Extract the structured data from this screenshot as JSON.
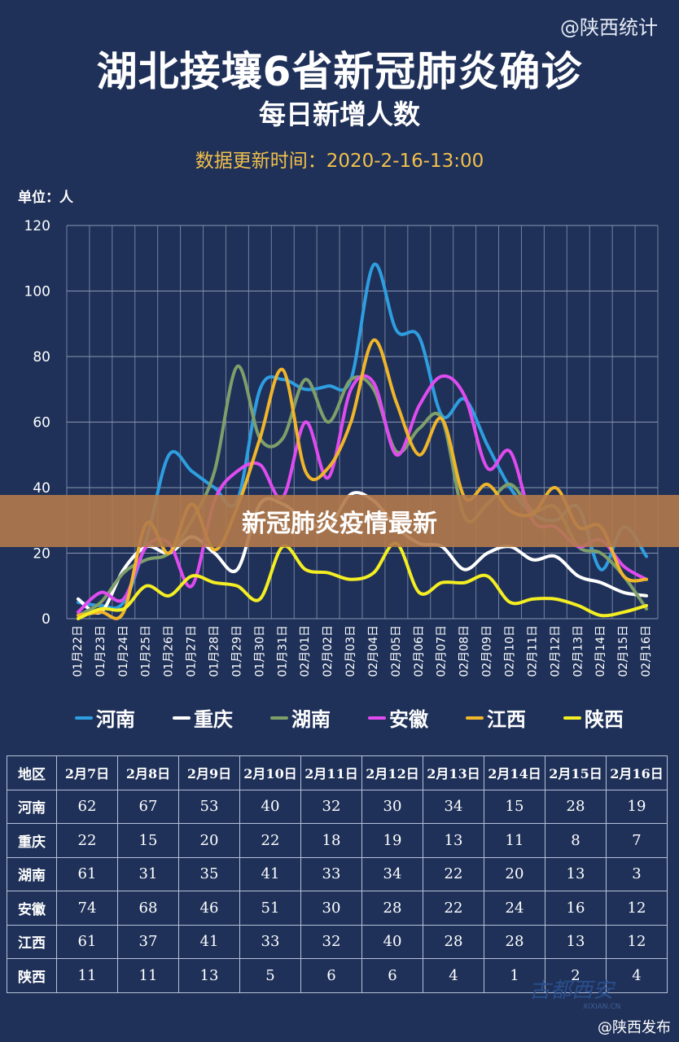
{
  "watermark_top": "@陕西统计",
  "title": "湖北接壤6省新冠肺炎确诊",
  "subtitle": "每日新增人数",
  "update_time": "数据更新时间：2020-2-16-13:00",
  "unit": "单位：人",
  "banner": "新冠肺炎疫情最新",
  "watermark_bottom": "@陕西发布",
  "logo_text": "古都西安",
  "logo_subtext": "XIXIAN.CN",
  "colors": {
    "河南": "#2e9ee0",
    "重庆": "#ffffff",
    "湖南": "#7f9f6a",
    "安徽": "#e04bf0",
    "江西": "#f0b52a",
    "陕西": "#f4ee22",
    "grid": "#8a96b0",
    "axis_text": "#ffffff"
  },
  "chart_data": {
    "type": "line",
    "title": "湖北接壤6省新冠肺炎确诊",
    "subtitle": "每日新增人数",
    "ylabel": "单位：人",
    "ylim": [
      0,
      120
    ],
    "yticks": [
      0,
      20,
      40,
      60,
      80,
      100,
      120
    ],
    "grid": true,
    "legend": "bottom",
    "categories": [
      "01月22日",
      "01月23日",
      "01月24日",
      "01月25日",
      "01月26日",
      "01月27日",
      "01月28日",
      "01月29日",
      "01月30日",
      "01月31日",
      "02月01日",
      "02月02日",
      "02月03日",
      "02月04日",
      "02月05日",
      "02月06日",
      "02月07日",
      "02月08日",
      "02月09日",
      "02月10日",
      "02月11日",
      "02月12日",
      "02月13日",
      "02月14日",
      "02月15日",
      "02月16日"
    ],
    "series": [
      {
        "name": "河南",
        "values": [
          5,
          4,
          5,
          24,
          50,
          45,
          40,
          36,
          70,
          73,
          70,
          71,
          73,
          108,
          88,
          86,
          62,
          67,
          53,
          40,
          32,
          30,
          34,
          15,
          28,
          19
        ]
      },
      {
        "name": "重庆",
        "values": [
          6,
          2,
          15,
          22,
          20,
          25,
          20,
          15,
          35,
          35,
          30,
          28,
          38,
          36,
          28,
          23,
          22,
          15,
          20,
          22,
          18,
          19,
          13,
          11,
          8,
          7
        ]
      },
      {
        "name": "湖南",
        "values": [
          1,
          5,
          14,
          18,
          20,
          30,
          45,
          77,
          55,
          55,
          73,
          60,
          73,
          70,
          51,
          58,
          61,
          31,
          35,
          41,
          33,
          34,
          22,
          20,
          13,
          3
        ]
      },
      {
        "name": "安徽",
        "values": [
          2,
          8,
          6,
          22,
          23,
          10,
          36,
          45,
          47,
          37,
          60,
          43,
          70,
          72,
          50,
          65,
          74,
          68,
          46,
          51,
          30,
          28,
          22,
          24,
          16,
          12
        ]
      },
      {
        "name": "江西",
        "values": [
          1,
          2,
          2,
          29,
          20,
          35,
          21,
          34,
          55,
          76,
          45,
          46,
          60,
          85,
          66,
          50,
          61,
          37,
          41,
          33,
          32,
          40,
          28,
          28,
          13,
          12
        ]
      },
      {
        "name": "陕西",
        "values": [
          0,
          3,
          3,
          10,
          7,
          13,
          11,
          10,
          6,
          22,
          15,
          14,
          12,
          14,
          23,
          8,
          11,
          11,
          13,
          5,
          6,
          6,
          4,
          1,
          2,
          4
        ]
      }
    ]
  },
  "table": {
    "header": [
      "地区",
      "2月7日",
      "2月8日",
      "2月9日",
      "2月10日",
      "2月11日",
      "2月12日",
      "2月13日",
      "2月14日",
      "2月15日",
      "2月16日"
    ],
    "rows": [
      [
        "河南",
        "62",
        "67",
        "53",
        "40",
        "32",
        "30",
        "34",
        "15",
        "28",
        "19"
      ],
      [
        "重庆",
        "22",
        "15",
        "20",
        "22",
        "18",
        "19",
        "13",
        "11",
        "8",
        "7"
      ],
      [
        "湖南",
        "61",
        "31",
        "35",
        "41",
        "33",
        "34",
        "22",
        "20",
        "13",
        "3"
      ],
      [
        "安徽",
        "74",
        "68",
        "46",
        "51",
        "30",
        "28",
        "22",
        "24",
        "16",
        "12"
      ],
      [
        "江西",
        "61",
        "37",
        "41",
        "33",
        "32",
        "40",
        "28",
        "28",
        "13",
        "12"
      ],
      [
        "陕西",
        "11",
        "11",
        "13",
        "5",
        "6",
        "6",
        "4",
        "1",
        "2",
        "4"
      ]
    ]
  }
}
